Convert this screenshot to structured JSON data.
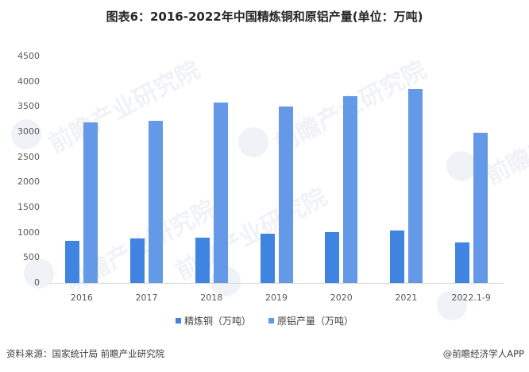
{
  "title": "图表6：2016-2022年中国精炼铜和原铝产量(单位：万吨)",
  "colors": {
    "copper": "#3f84e0",
    "aluminum": "#6399e6",
    "axis": "#d9d9d9",
    "text": "#595959"
  },
  "y_ticks": [
    "4500",
    "4000",
    "3500",
    "3000",
    "2500",
    "2000",
    "1500",
    "1000",
    "500",
    "0"
  ],
  "x_ticks": [
    "2016",
    "2017",
    "2018",
    "2019",
    "2020",
    "2021",
    "2022.1-9"
  ],
  "legend": {
    "copper_label": "精炼铜（万吨）",
    "aluminum_label": "原铝产量（万吨）"
  },
  "footer": {
    "source": "资料来源：国家统计局 前瞻产业研究院",
    "credit": "@前瞻经济学人APP"
  },
  "watermark": "前瞻产业研究院",
  "chart_data": {
    "type": "bar",
    "title": "图表6：2016-2022年中国精炼铜和原铝产量(单位：万吨)",
    "xlabel": "",
    "ylabel": "",
    "categories": [
      "2016",
      "2017",
      "2018",
      "2019",
      "2020",
      "2021",
      "2022.1-9"
    ],
    "series": [
      {
        "name": "精炼铜（万吨）",
        "color": "#3f84e0",
        "values": [
          844,
          889,
          903,
          978,
          1003,
          1049,
          804
        ]
      },
      {
        "name": "原铝产量（万吨）",
        "color": "#6399e6",
        "values": [
          3187,
          3227,
          3580,
          3504,
          3708,
          3850,
          2986
        ]
      }
    ],
    "ylim": [
      0,
      4500
    ],
    "y_tick_step": 500,
    "grid": false,
    "legend_position": "bottom"
  }
}
